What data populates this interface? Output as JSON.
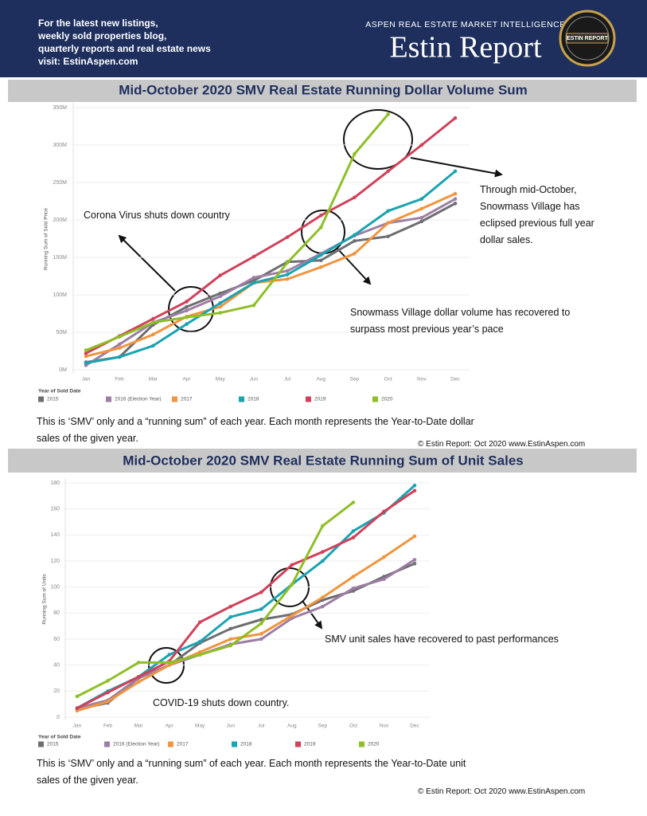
{
  "header": {
    "left_lines": [
      "For the latest new listings,",
      "weekly sold properties blog,",
      "quarterly reports and real estate news",
      "visit: EstinAspen.com"
    ],
    "tagline": "ASPEN REAL ESTATE MARKET INTELLIGENCE",
    "brand": "Estin Report",
    "logo_text": "ESTIN REPORT"
  },
  "chart_data": [
    {
      "type": "line",
      "title": "Mid-October 2020 SMV Real Estate Running Dollar Volume Sum",
      "y_label": "Running Sum of Sold Price",
      "legend_title": "Year of Sold Date",
      "categories": [
        "Jan",
        "Feb",
        "Mar",
        "Apr",
        "May",
        "Jun",
        "Jul",
        "Aug",
        "Sep",
        "Oct",
        "Nov",
        "Dec"
      ],
      "ylim": [
        0,
        350
      ],
      "yticks": [
        {
          "value": 0,
          "label": "0M"
        },
        {
          "value": 50,
          "label": "50M"
        },
        {
          "value": 100,
          "label": "100M"
        },
        {
          "value": 150,
          "label": "150M"
        },
        {
          "value": 200,
          "label": "200M"
        },
        {
          "value": 250,
          "label": "250M"
        },
        {
          "value": 300,
          "label": "300M"
        },
        {
          "value": 350,
          "label": "350M"
        }
      ],
      "grid": true,
      "series": [
        {
          "name": "2015",
          "color": "#6d6e71",
          "values": [
            10,
            17,
            60,
            84,
            102,
            119,
            144,
            146,
            172,
            178,
            198,
            222
          ]
        },
        {
          "name": "2016 (Election Year)",
          "color": "#9e7ea4",
          "values": [
            6,
            34,
            63,
            79,
            98,
            123,
            132,
            155,
            179,
            196,
            203,
            228
          ]
        },
        {
          "name": "2017",
          "color": "#f0953e",
          "values": [
            18,
            29,
            47,
            71,
            84,
            116,
            121,
            137,
            155,
            196,
            215,
            235
          ]
        },
        {
          "name": "2018",
          "color": "#1aa3b1",
          "values": [
            9,
            17,
            32,
            61,
            89,
            116,
            127,
            153,
            180,
            212,
            228,
            265
          ]
        },
        {
          "name": "2019",
          "color": "#d0415a",
          "values": [
            22,
            45,
            68,
            91,
            126,
            151,
            177,
            206,
            230,
            265,
            300,
            336
          ]
        },
        {
          "name": "2020",
          "color": "#8fbf27",
          "values": [
            26,
            44,
            63,
            70,
            76,
            86,
            143,
            190,
            288,
            341,
            null,
            null
          ]
        }
      ],
      "annotations": [
        "Corona Virus shuts down country",
        "Through mid-October, Snowmass Village has eclipsed previous full year dollar sales.",
        "Snowmass Village dollar volume has recovered to surpass most previous year’s pace"
      ],
      "caption": "This is ‘SMV’ only and a “running sum” of each year. Each month represents the Year-to-Date dollar sales of the given year.",
      "credit": "© Estin Report: Oct 2020 www.EstinAspen.com"
    },
    {
      "type": "line",
      "title": "Mid-October 2020 SMV Real Estate Running Sum of Unit Sales",
      "y_label": "Running Sum of Units",
      "legend_title": "Year of Sold Date",
      "categories": [
        "Jan",
        "Feb",
        "Mar",
        "Apr",
        "May",
        "Jun",
        "Jul",
        "Aug",
        "Sep",
        "Oct",
        "Nov",
        "Dec"
      ],
      "ylim": [
        0,
        180
      ],
      "yticks": [
        0,
        20,
        40,
        60,
        80,
        100,
        120,
        140,
        160,
        180
      ],
      "grid": true,
      "series": [
        {
          "name": "2015",
          "color": "#6d6e71",
          "values": [
            6,
            11,
            30,
            40,
            57,
            68,
            75,
            79,
            90,
            97,
            108,
            118
          ]
        },
        {
          "name": "2016 (Election Year)",
          "color": "#9e7ea4",
          "values": [
            7,
            13,
            30,
            40,
            48,
            56,
            60,
            76,
            85,
            99,
            106,
            121
          ]
        },
        {
          "name": "2017",
          "color": "#f0953e",
          "values": [
            5,
            12,
            27,
            40,
            50,
            60,
            64,
            78,
            92,
            108,
            123,
            139
          ]
        },
        {
          "name": "2018",
          "color": "#1aa3b1",
          "values": [
            7,
            20,
            31,
            48,
            58,
            77,
            83,
            102,
            120,
            143,
            157,
            178
          ]
        },
        {
          "name": "2019",
          "color": "#d0415a",
          "values": [
            7,
            19,
            31,
            43,
            73,
            85,
            96,
            117,
            127,
            138,
            158,
            174
          ]
        },
        {
          "name": "2020",
          "color": "#8fbf27",
          "values": [
            16,
            28,
            42,
            42,
            48,
            55,
            72,
            102,
            147,
            165,
            null,
            null
          ]
        }
      ],
      "annotations": [
        "SMV unit sales have recovered to past performances",
        "COVID-19 shuts down country."
      ],
      "caption": "This is ‘SMV’ only and a “running sum” of each year. Each month represents the Year-to-Date unit sales of the given year.",
      "credit": "© Estin Report: Oct 2020 www.EstinAspen.com"
    }
  ]
}
